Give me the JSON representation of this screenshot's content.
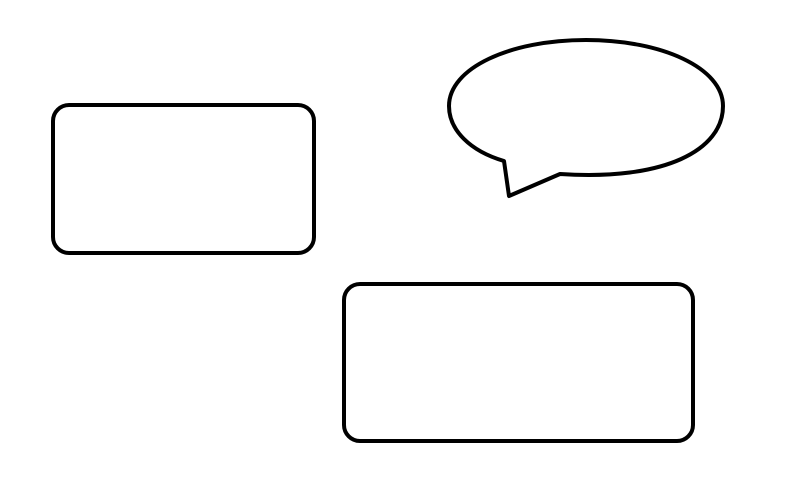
{
  "diagram": {
    "background": "#ffffff",
    "stroke_color": "#000000",
    "shapes": [
      {
        "kind": "rounded-rectangle",
        "name": "box-left"
      },
      {
        "kind": "speech-bubble",
        "name": "speech-bubble"
      },
      {
        "kind": "rounded-rectangle",
        "name": "box-bottom-right"
      }
    ]
  }
}
